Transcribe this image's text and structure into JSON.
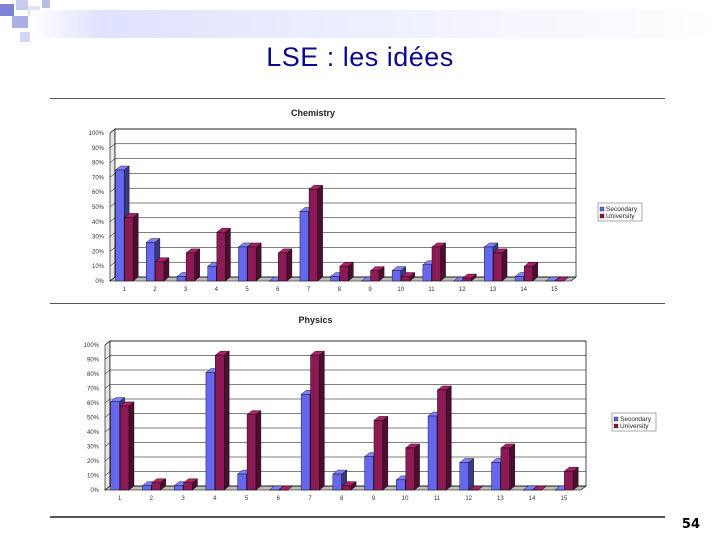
{
  "slide": {
    "title": "LSE : les idées",
    "page_number": "54"
  },
  "colors": {
    "title": "#0a0a8c",
    "secondary": "#6666ee",
    "university": "#8b1a55",
    "grid": "#000000",
    "decor": "#7b84d8"
  },
  "chart_data": [
    {
      "type": "bar",
      "title": "Chemistry",
      "categories": [
        "1",
        "2",
        "3",
        "4",
        "5",
        "6",
        "7",
        "8",
        "9",
        "10",
        "11",
        "12",
        "13",
        "14",
        "15"
      ],
      "yticks": [
        "0%",
        "10%",
        "20%",
        "30%",
        "40%",
        "50%",
        "60%",
        "70%",
        "80%",
        "90%",
        "100%"
      ],
      "ylim": [
        0,
        100
      ],
      "legend": "right",
      "series": [
        {
          "name": "Secondary",
          "values": [
            75,
            26,
            3,
            10,
            23,
            0,
            47,
            3,
            0,
            7,
            11,
            0,
            23,
            3,
            0
          ]
        },
        {
          "name": "University",
          "values": [
            43,
            13,
            19,
            33,
            23,
            19,
            62,
            10,
            7,
            3,
            23,
            2,
            19,
            10,
            0
          ]
        }
      ]
    },
    {
      "type": "bar",
      "title": "Physics",
      "categories": [
        "1",
        "2",
        "3",
        "4",
        "5",
        "6",
        "7",
        "8",
        "9",
        "10",
        "11",
        "12",
        "13",
        "14",
        "15"
      ],
      "yticks": [
        "0%",
        "10%",
        "20%",
        "30%",
        "40%",
        "50%",
        "60%",
        "70%",
        "80%",
        "90%",
        "100%"
      ],
      "ylim": [
        0,
        100
      ],
      "legend": "right",
      "series": [
        {
          "name": "Secondary",
          "values": [
            61,
            3,
            3,
            81,
            11,
            0,
            66,
            11,
            23,
            7,
            51,
            19,
            19,
            0,
            0
          ]
        },
        {
          "name": "University",
          "values": [
            58,
            5,
            5,
            93,
            52,
            0,
            93,
            3,
            48,
            29,
            69,
            0,
            29,
            0,
            13
          ]
        }
      ]
    }
  ]
}
